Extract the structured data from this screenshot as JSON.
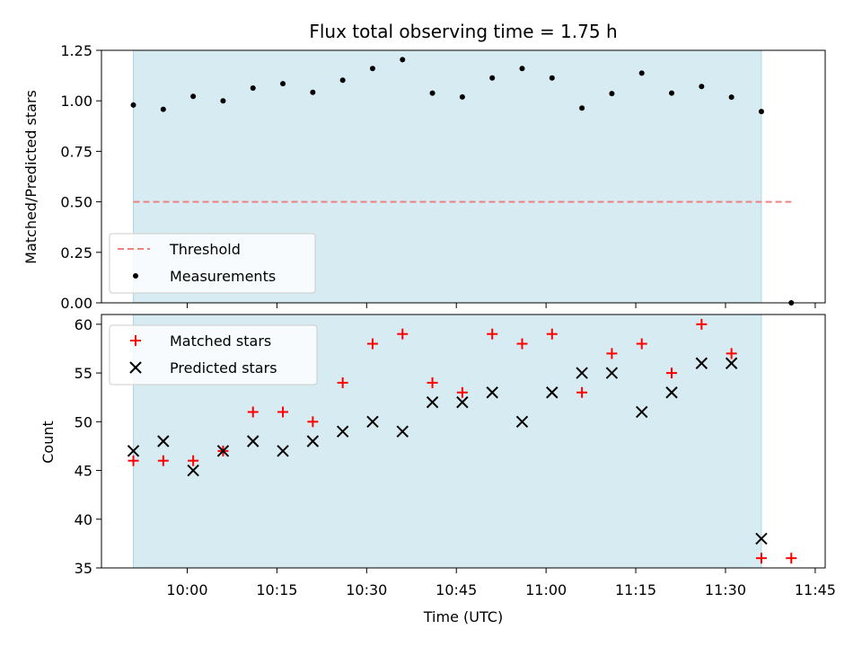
{
  "chart_data": [
    {
      "type": "scatter",
      "title": "Flux total observing time = 1.75 h",
      "xlabel": "",
      "ylabel": "Matched/Predicted stars",
      "ylim": [
        0,
        1.25
      ],
      "yticks": [
        "0.00",
        "0.25",
        "0.50",
        "0.75",
        "1.00",
        "1.25"
      ],
      "xlim": [
        "09:45:40",
        "11:46:40"
      ],
      "grid": false,
      "legend_position": "lower-left",
      "shaded_interval": [
        "09:51:00",
        "11:36:00"
      ],
      "threshold": {
        "name": "Threshold",
        "value": 0.5,
        "x_start": "09:51:00",
        "x_end": "11:41:00",
        "color": "#f08080"
      },
      "series": [
        {
          "name": "Measurements",
          "color": "#000000",
          "x": [
            "09:51",
            "09:56",
            "10:01",
            "10:06",
            "10:11",
            "10:16",
            "10:21",
            "10:26",
            "10:31",
            "10:36",
            "10:41",
            "10:46",
            "10:51",
            "10:56",
            "11:01",
            "11:06",
            "11:11",
            "11:16",
            "11:21",
            "11:26",
            "11:31",
            "11:36",
            "11:41"
          ],
          "y": [
            0.979,
            0.958,
            1.022,
            1.0,
            1.063,
            1.085,
            1.042,
            1.102,
            1.16,
            1.204,
            1.038,
            1.019,
            1.113,
            1.16,
            1.113,
            0.964,
            1.036,
            1.137,
            1.038,
            1.071,
            1.018,
            0.947,
            0.0
          ]
        }
      ]
    },
    {
      "type": "scatter",
      "title": "",
      "xlabel": "Time (UTC)",
      "ylabel": "Count",
      "ylim": [
        35,
        61
      ],
      "yticks": [
        "35",
        "40",
        "45",
        "50",
        "55",
        "60"
      ],
      "xticks": [
        "10:00",
        "10:15",
        "10:30",
        "10:45",
        "11:00",
        "11:15",
        "11:30",
        "11:45"
      ],
      "xlim": [
        "09:45:40",
        "11:46:40"
      ],
      "grid": false,
      "legend_position": "top-left",
      "shaded_interval": [
        "09:51:00",
        "11:36:00"
      ],
      "series": [
        {
          "name": "Matched stars",
          "color": "#ff0000",
          "marker": "plus",
          "x": [
            "09:51",
            "09:56",
            "10:01",
            "10:06",
            "10:11",
            "10:16",
            "10:21",
            "10:26",
            "10:31",
            "10:36",
            "10:41",
            "10:46",
            "10:51",
            "10:56",
            "11:01",
            "11:06",
            "11:11",
            "11:16",
            "11:21",
            "11:26",
            "11:31",
            "11:36",
            "11:41"
          ],
          "y": [
            46,
            46,
            46,
            47,
            51,
            51,
            50,
            54,
            58,
            59,
            54,
            53,
            59,
            58,
            59,
            53,
            57,
            58,
            55,
            60,
            57,
            36,
            36
          ]
        },
        {
          "name": "Predicted stars",
          "color": "#000000",
          "marker": "x",
          "x": [
            "09:51",
            "09:56",
            "10:01",
            "10:06",
            "10:11",
            "10:16",
            "10:21",
            "10:26",
            "10:31",
            "10:36",
            "10:41",
            "10:46",
            "10:51",
            "10:56",
            "11:01",
            "11:06",
            "11:11",
            "11:16",
            "11:21",
            "11:26",
            "11:31",
            "11:36"
          ],
          "y": [
            47,
            48,
            45,
            47,
            48,
            47,
            48,
            49,
            50,
            49,
            52,
            52,
            53,
            50,
            53,
            55,
            55,
            51,
            53,
            56,
            56,
            38
          ]
        }
      ]
    }
  ]
}
